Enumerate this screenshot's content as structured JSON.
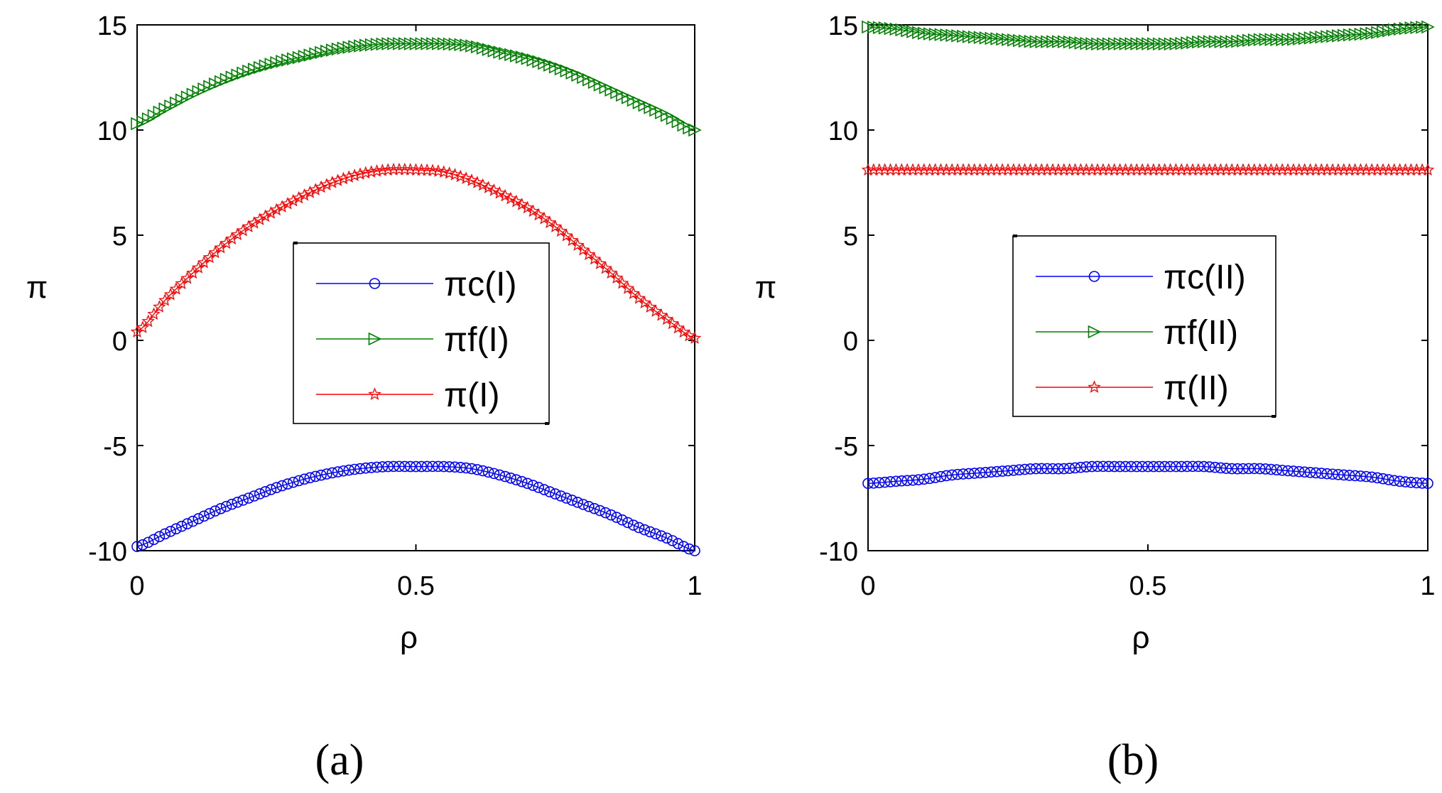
{
  "chart_data": [
    {
      "type": "line",
      "panel_label": "(a)",
      "xlabel": "ρ",
      "ylabel": "π",
      "xlim": [
        0,
        1
      ],
      "ylim": [
        -10,
        15
      ],
      "xticks": [
        0,
        0.5,
        1
      ],
      "xtick_labels": [
        "0",
        "0.5",
        "1"
      ],
      "yticks": [
        -10,
        -5,
        0,
        5,
        10,
        15
      ],
      "ytick_labels": [
        "-10",
        "-5",
        "0",
        "5",
        "10",
        "15"
      ],
      "legend_position": "center",
      "x": [
        0,
        0.05,
        0.1,
        0.15,
        0.2,
        0.25,
        0.3,
        0.35,
        0.4,
        0.45,
        0.5,
        0.55,
        0.6,
        0.65,
        0.7,
        0.75,
        0.8,
        0.85,
        0.9,
        0.95,
        1
      ],
      "series": [
        {
          "name": "πc(I)",
          "color": "#0000ff",
          "marker": "circle",
          "values": [
            -9.8,
            -9.2,
            -8.6,
            -8.0,
            -7.5,
            -7.0,
            -6.6,
            -6.3,
            -6.1,
            -6.0,
            -6.0,
            -6.0,
            -6.1,
            -6.4,
            -6.8,
            -7.3,
            -7.8,
            -8.3,
            -8.9,
            -9.4,
            -10.0
          ]
        },
        {
          "name": "πf(I)",
          "color": "#008000",
          "marker": "triangle-right",
          "values": [
            10.3,
            11.0,
            11.7,
            12.3,
            12.8,
            13.2,
            13.5,
            13.8,
            14.0,
            14.1,
            14.1,
            14.1,
            14.0,
            13.7,
            13.4,
            13.0,
            12.5,
            11.9,
            11.3,
            10.7,
            10.0
          ]
        },
        {
          "name": "π(I)",
          "color": "#ff0000",
          "marker": "star",
          "values": [
            0.4,
            1.9,
            3.2,
            4.4,
            5.4,
            6.2,
            6.9,
            7.5,
            7.9,
            8.1,
            8.1,
            8.0,
            7.6,
            7.0,
            6.3,
            5.4,
            4.3,
            3.2,
            2.0,
            1.0,
            0.1
          ]
        }
      ]
    },
    {
      "type": "line",
      "panel_label": "(b)",
      "xlabel": "ρ",
      "ylabel": "π",
      "xlim": [
        0,
        1
      ],
      "ylim": [
        -10,
        15
      ],
      "xticks": [
        0,
        0.5,
        1
      ],
      "xtick_labels": [
        "0",
        "0.5",
        "1"
      ],
      "yticks": [
        -10,
        -5,
        0,
        5,
        10,
        15
      ],
      "ytick_labels": [
        "-10",
        "-5",
        "0",
        "5",
        "10",
        "15"
      ],
      "legend_position": "center",
      "x": [
        0,
        0.05,
        0.1,
        0.15,
        0.2,
        0.25,
        0.3,
        0.35,
        0.4,
        0.45,
        0.5,
        0.55,
        0.6,
        0.65,
        0.7,
        0.75,
        0.8,
        0.85,
        0.9,
        0.95,
        1
      ],
      "series": [
        {
          "name": "πc(II)",
          "color": "#0000ff",
          "marker": "circle",
          "values": [
            -6.8,
            -6.7,
            -6.6,
            -6.4,
            -6.3,
            -6.2,
            -6.1,
            -6.1,
            -6.0,
            -6.0,
            -6.0,
            -6.0,
            -6.0,
            -6.1,
            -6.1,
            -6.2,
            -6.3,
            -6.4,
            -6.5,
            -6.7,
            -6.8
          ]
        },
        {
          "name": "πf(II)",
          "color": "#008000",
          "marker": "triangle-right",
          "values": [
            14.9,
            14.8,
            14.6,
            14.5,
            14.4,
            14.3,
            14.2,
            14.2,
            14.1,
            14.1,
            14.1,
            14.1,
            14.2,
            14.2,
            14.3,
            14.3,
            14.4,
            14.5,
            14.6,
            14.8,
            14.9
          ]
        },
        {
          "name": "π(II)",
          "color": "#ff0000",
          "marker": "star",
          "values": [
            8.1,
            8.1,
            8.1,
            8.1,
            8.1,
            8.1,
            8.1,
            8.1,
            8.1,
            8.1,
            8.1,
            8.1,
            8.1,
            8.1,
            8.1,
            8.1,
            8.1,
            8.1,
            8.1,
            8.1,
            8.1
          ]
        }
      ]
    }
  ]
}
